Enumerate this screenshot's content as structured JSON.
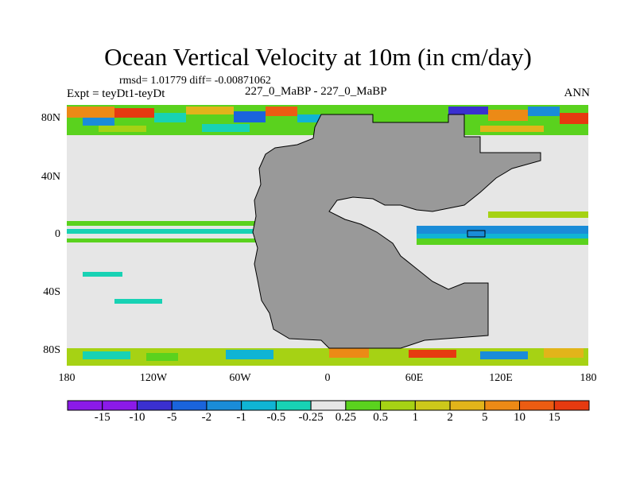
{
  "title": "Ocean Vertical Velocity at 10m (in cm/day)",
  "stats": "rmsd= 1.01779 diff= -0.00871062",
  "experiment": "Expt = teyDt1-teyDt",
  "case_id": "227_0_MaBP - 227_0_MaBP",
  "season": "ANN",
  "y_labels": [
    "80N",
    "40N",
    "0",
    "40S",
    "80S"
  ],
  "x_labels": [
    "180",
    "120W",
    "60W",
    "0",
    "60E",
    "120E",
    "180"
  ],
  "colorbar": {
    "labels": [
      "-15",
      "-10",
      "-5",
      "-2",
      "-1",
      "-0.5",
      "-0.25",
      "0.25",
      "0.5",
      "1",
      "2",
      "5",
      "10",
      "15"
    ],
    "colors": [
      "#8b1ae8",
      "#3a30d0",
      "#1a64dc",
      "#1a8cd8",
      "#10b4d4",
      "#18d2b4",
      "#e6e6e6",
      "#5ad21e",
      "#a6d214",
      "#ccc81a",
      "#e2b41a",
      "#ec8a16",
      "#ec5c12",
      "#e63a10"
    ]
  },
  "colors": {
    "land": "#999999",
    "ocean_zero": "#e6e6e6",
    "coast": "#000000"
  }
}
